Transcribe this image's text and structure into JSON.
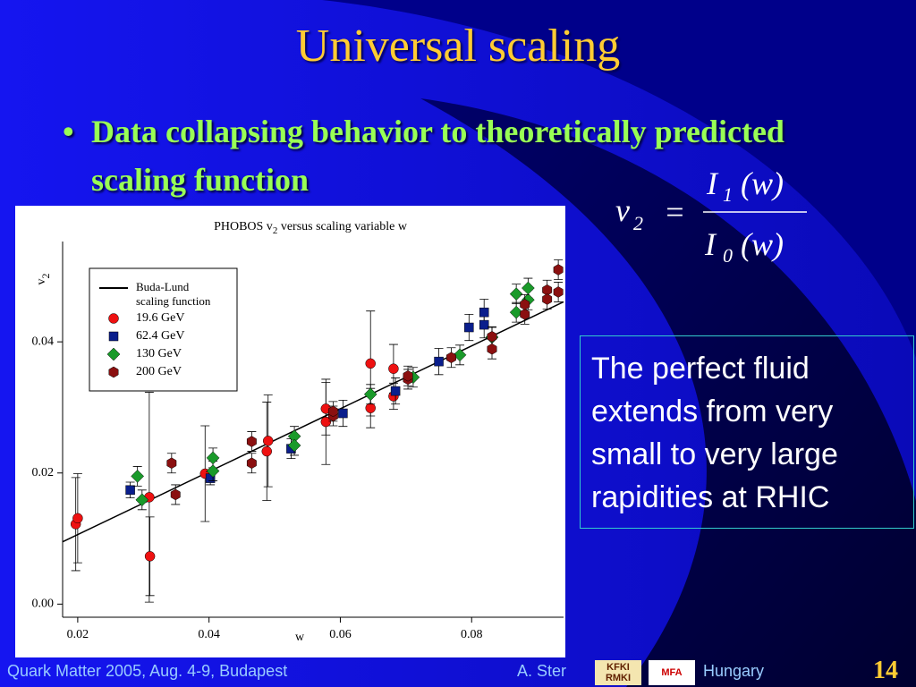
{
  "slide": {
    "title": "Universal scaling",
    "bullet": "Data collapsing behavior to theoretically predicted scaling function",
    "formula": {
      "lhs": "v",
      "lhs_sub": "2",
      "eq": "=",
      "num": "I",
      "num_sub": "1",
      "num_arg": "(w)",
      "den": "I",
      "den_sub": "0",
      "den_arg": "(w)"
    },
    "callout": "The perfect fluid extends from very small to very large rapidities at RHIC",
    "footer": {
      "event": "Quark Matter 2005, Aug. 4-9, Budapest",
      "author": "A. Ster",
      "logo1": "KFKI RMKI",
      "logo2": "MFA",
      "country": "Hungary",
      "page": "14"
    }
  },
  "chart_data": {
    "type": "scatter",
    "title": {
      "main": "PHOBOS v",
      "sub": "2",
      "rest": " versus scaling variable w"
    },
    "y_label": {
      "main": "v",
      "sub": "2"
    },
    "x_label": "w",
    "xlim": [
      0.0177,
      0.094
    ],
    "ylim": [
      -0.002,
      0.0553
    ],
    "xticks": [
      0.02,
      0.04,
      0.06,
      0.08
    ],
    "yticks": [
      {
        "value": 0,
        "label": "0.00"
      },
      0.02,
      0.04
    ],
    "legend": "upper left",
    "series": [
      {
        "name": "Buda-Lund scaling function",
        "marker": "line",
        "color": "#000000",
        "x": [
          0.0177,
          0.094
        ],
        "values": [
          0.0095,
          0.0461
        ]
      },
      {
        "name": "19.6 GeV",
        "marker": "circle",
        "color": "#ee1111",
        "x": [
          0.0197,
          0.02,
          0.0309,
          0.031,
          0.0394,
          0.0488,
          0.049,
          0.0578,
          0.0578,
          0.0646,
          0.0646,
          0.0681,
          0.0681
        ],
        "values": [
          0.0122,
          0.0131,
          0.0163,
          0.0073,
          0.0199,
          0.0233,
          0.0249,
          0.0278,
          0.0298,
          0.0367,
          0.0299,
          0.0359,
          0.0317
        ],
        "errors": [
          0.0071,
          0.0068,
          0.016,
          0.006,
          0.0073,
          0.0075,
          0.007,
          0.0065,
          0.004,
          0.008,
          0.003,
          0.0037,
          0.002
        ]
      },
      {
        "name": "62.4 GeV",
        "marker": "square",
        "color": "#0a1e8c",
        "x": [
          0.028,
          0.0402,
          0.0525,
          0.0604,
          0.0684,
          0.075,
          0.0796,
          0.0819,
          0.0819
        ],
        "values": [
          0.0174,
          0.0192,
          0.0237,
          0.0291,
          0.0325,
          0.037,
          0.0422,
          0.0445,
          0.0426
        ],
        "errors": [
          0.0012,
          0.001,
          0.0015,
          0.002,
          0.002,
          0.002,
          0.002,
          0.002,
          0.002
        ]
      },
      {
        "name": "130 GeV",
        "marker": "diamond",
        "color": "#1a9a2a",
        "x": [
          0.0291,
          0.0298,
          0.0406,
          0.0406,
          0.053,
          0.053,
          0.0646,
          0.0711,
          0.0782,
          0.0831,
          0.0868,
          0.0886,
          0.0886,
          0.0868
        ],
        "values": [
          0.0195,
          0.0159,
          0.0223,
          0.0203,
          0.0256,
          0.0242,
          0.032,
          0.0346,
          0.038,
          0.0407,
          0.0473,
          0.0482,
          0.0464,
          0.0445
        ],
        "errors": [
          0.0015,
          0.0015,
          0.0015,
          0.0015,
          0.0015,
          0.0015,
          0.0015,
          0.0015,
          0.0015,
          0.0015,
          0.0015,
          0.0015,
          0.0015,
          0.0015
        ]
      },
      {
        "name": "200 GeV",
        "marker": "hexagon",
        "color": "#8b1010",
        "x": [
          0.0349,
          0.0343,
          0.0465,
          0.0465,
          0.0589,
          0.0589,
          0.0703,
          0.0703,
          0.0769,
          0.0831,
          0.0831,
          0.0881,
          0.0881,
          0.0915,
          0.0915,
          0.0932,
          0.0932
        ],
        "values": [
          0.0167,
          0.0215,
          0.0248,
          0.0215,
          0.0287,
          0.0294,
          0.0343,
          0.0348,
          0.0376,
          0.0408,
          0.0389,
          0.0442,
          0.0457,
          0.0479,
          0.0465,
          0.051,
          0.0476
        ],
        "errors": [
          0.0015,
          0.0015,
          0.0015,
          0.0015,
          0.0015,
          0.0015,
          0.0015,
          0.0015,
          0.0015,
          0.0015,
          0.0015,
          0.0015,
          0.0015,
          0.0015,
          0.0015,
          0.0015,
          0.0015
        ]
      }
    ]
  }
}
